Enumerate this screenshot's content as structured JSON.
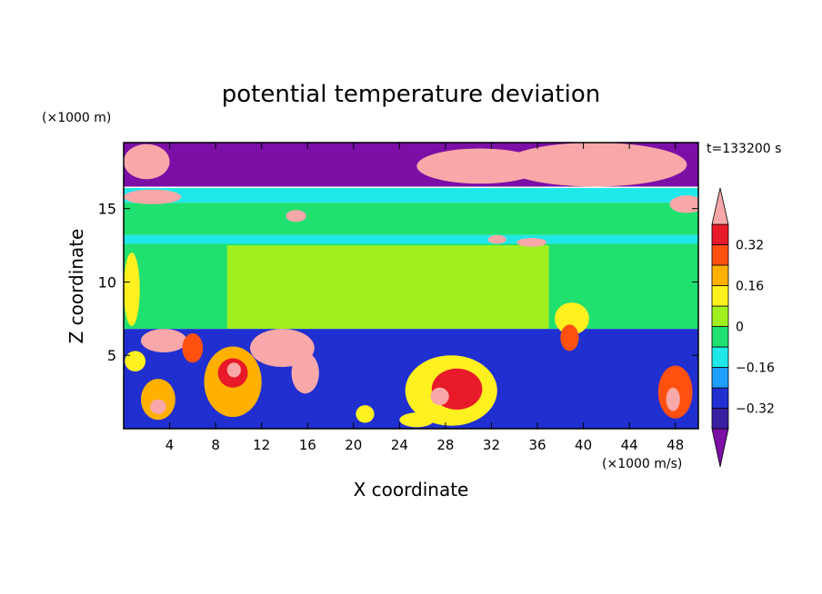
{
  "chart_data": {
    "type": "heatmap",
    "title": "potential temperature deviation",
    "xlabel": "X coordinate",
    "ylabel": "Z coordinate",
    "x_unit": "(×1000 m/s)",
    "y_unit": "(×1000 m)",
    "time_label": "t=133200 s",
    "xlim": [
      0,
      50
    ],
    "ylim": [
      0,
      19.5
    ],
    "x_ticks": [
      4,
      8,
      12,
      16,
      20,
      24,
      28,
      32,
      36,
      40,
      44,
      48
    ],
    "y_ticks": [
      5,
      10,
      15
    ],
    "colorbar": {
      "tick_values": [
        0.32,
        0.16,
        0,
        -0.16,
        -0.32
      ],
      "tick_labels": [
        "0.32",
        "0.16",
        "0",
        "−0.16",
        "−0.32"
      ],
      "levels": [
        -0.4,
        -0.32,
        -0.24,
        -0.16,
        -0.08,
        0,
        0.08,
        0.16,
        0.24,
        0.32,
        0.4
      ],
      "colors": [
        "#7b0fa6",
        "#3a1fa0",
        "#1f2fd0",
        "#1fa0ff",
        "#1fe8e8",
        "#20e070",
        "#a0f020",
        "#fff020",
        "#ffb000",
        "#ff5010",
        "#e81a2a",
        "#f8a8a8"
      ],
      "extend": "both"
    },
    "regions": [
      {
        "name": "upper-purple-layer",
        "value": -0.5,
        "x": [
          0,
          50
        ],
        "y": [
          16.5,
          19.5
        ]
      },
      {
        "name": "cyan-band-upper",
        "value": -0.12,
        "x": [
          0,
          50
        ],
        "y": [
          15.4,
          16.4
        ]
      },
      {
        "name": "green-band-upper",
        "value": -0.05,
        "x": [
          0,
          50
        ],
        "y": [
          13.2,
          15.4
        ]
      },
      {
        "name": "cyan-band-mid",
        "value": -0.1,
        "x": [
          0,
          50
        ],
        "y": [
          12.6,
          13.2
        ]
      },
      {
        "name": "green-middle-layer",
        "value": -0.04,
        "x": [
          0,
          50
        ],
        "y": [
          6.8,
          12.6
        ]
      },
      {
        "name": "lime-patch-center",
        "value": 0.03,
        "x": [
          9,
          37
        ],
        "y": [
          6.8,
          12.5
        ]
      },
      {
        "name": "lower-turbulent-layer",
        "value": -0.3,
        "x": [
          0,
          50
        ],
        "y": [
          0,
          6.8
        ]
      }
    ],
    "blobs": [
      {
        "value": 0.5,
        "x": 2.0,
        "y": 18.2,
        "rx": 2.0,
        "ry": 1.2
      },
      {
        "value": 0.5,
        "x": 31.0,
        "y": 17.9,
        "rx": 5.5,
        "ry": 1.2
      },
      {
        "value": 0.5,
        "x": 41.0,
        "y": 18.0,
        "rx": 8.0,
        "ry": 1.5
      },
      {
        "value": 0.5,
        "x": 49.0,
        "y": 15.3,
        "rx": 1.5,
        "ry": 0.6
      },
      {
        "value": 0.5,
        "x": 2.5,
        "y": 15.8,
        "rx": 2.5,
        "ry": 0.5
      },
      {
        "value": 0.5,
        "x": 35.5,
        "y": 12.7,
        "rx": 1.3,
        "ry": 0.3
      },
      {
        "value": 0.5,
        "x": 32.5,
        "y": 12.9,
        "rx": 0.8,
        "ry": 0.3
      },
      {
        "value": 0.5,
        "x": 15.0,
        "y": 14.5,
        "rx": 0.9,
        "ry": 0.4
      },
      {
        "value": 0.5,
        "x": 3.5,
        "y": 6.0,
        "rx": 2.0,
        "ry": 0.8
      },
      {
        "value": 0.5,
        "x": 13.8,
        "y": 5.5,
        "rx": 2.8,
        "ry": 1.3
      },
      {
        "value": 0.5,
        "x": 15.8,
        "y": 3.8,
        "rx": 1.2,
        "ry": 1.4
      },
      {
        "value": 0.12,
        "x": 39.0,
        "y": 7.5,
        "rx": 1.5,
        "ry": 1.1
      },
      {
        "value": 0.3,
        "x": 38.8,
        "y": 6.2,
        "rx": 0.8,
        "ry": 0.9
      },
      {
        "value": 0.12,
        "x": 0.7,
        "y": 9.5,
        "rx": 0.7,
        "ry": 2.5
      },
      {
        "value": 0.2,
        "x": 9.5,
        "y": 3.2,
        "rx": 2.5,
        "ry": 2.4
      },
      {
        "value": 0.35,
        "x": 9.5,
        "y": 3.8,
        "rx": 1.3,
        "ry": 1.0
      },
      {
        "value": 0.5,
        "x": 9.6,
        "y": 4.0,
        "rx": 0.6,
        "ry": 0.5
      },
      {
        "value": 0.15,
        "x": 28.5,
        "y": 2.6,
        "rx": 4.0,
        "ry": 2.4
      },
      {
        "value": 0.32,
        "x": 29.0,
        "y": 2.7,
        "rx": 2.2,
        "ry": 1.4
      },
      {
        "value": 0.5,
        "x": 27.5,
        "y": 2.2,
        "rx": 0.8,
        "ry": 0.6
      },
      {
        "value": 0.2,
        "x": 3.0,
        "y": 2.0,
        "rx": 1.5,
        "ry": 1.4
      },
      {
        "value": 0.5,
        "x": 3.0,
        "y": 1.5,
        "rx": 0.7,
        "ry": 0.5
      },
      {
        "value": 0.25,
        "x": 6.0,
        "y": 5.5,
        "rx": 0.9,
        "ry": 1.0
      },
      {
        "value": 0.3,
        "x": 48.0,
        "y": 2.5,
        "rx": 1.5,
        "ry": 1.8
      },
      {
        "value": 0.5,
        "x": 47.8,
        "y": 2.0,
        "rx": 0.6,
        "ry": 0.8
      },
      {
        "value": 0.12,
        "x": 1.0,
        "y": 4.6,
        "rx": 0.9,
        "ry": 0.7
      },
      {
        "value": 0.15,
        "x": 21.0,
        "y": 1.0,
        "rx": 0.8,
        "ry": 0.6
      },
      {
        "value": 0.12,
        "x": 25.5,
        "y": 0.6,
        "rx": 1.5,
        "ry": 0.5
      }
    ]
  }
}
